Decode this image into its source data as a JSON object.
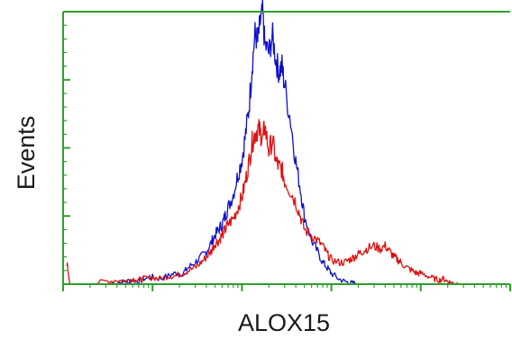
{
  "chart_data": {
    "type": "line",
    "title": "",
    "xlabel": "ALOX15",
    "ylabel": "Events",
    "xscale": "log",
    "grid": false,
    "legend": "none",
    "xlim": [
      1,
      100000
    ],
    "ylim": [
      0,
      100
    ],
    "frame_color": "#2e9e2e",
    "series": [
      {
        "color": "#1010cc",
        "x": [
          3,
          4,
          5,
          6,
          7,
          8,
          10,
          12,
          15,
          18,
          22,
          25,
          30,
          35,
          40,
          45,
          50,
          55,
          60,
          65,
          70,
          80,
          90,
          100,
          110,
          120,
          130,
          140,
          150,
          160,
          170,
          180,
          200,
          220,
          240,
          260,
          280,
          300,
          350,
          400,
          450,
          500,
          600,
          700,
          800,
          900,
          1000,
          1200,
          1400,
          1600,
          1800,
          2000,
          2200,
          2500,
          3000
        ],
        "y": [
          0,
          0.5,
          1,
          1.5,
          1,
          2,
          2.5,
          2,
          3,
          4,
          4,
          6,
          8,
          10,
          12,
          15,
          18,
          20,
          22,
          25,
          28,
          33,
          40,
          46,
          55,
          65,
          80,
          92,
          89,
          96,
          100,
          88,
          85,
          91,
          82,
          78,
          80,
          73,
          60,
          45,
          35,
          25,
          16,
          12,
          8,
          6,
          4,
          2,
          1,
          0.5,
          0.3,
          0,
          0,
          0,
          0
        ]
      },
      {
        "color": "#dd1111",
        "x": [
          1.1,
          1.2,
          1.4,
          2,
          3,
          4,
          5,
          6,
          7,
          8,
          10,
          12,
          15,
          18,
          22,
          25,
          30,
          35,
          40,
          45,
          50,
          55,
          60,
          65,
          70,
          80,
          90,
          100,
          110,
          120,
          130,
          140,
          150,
          160,
          170,
          180,
          200,
          220,
          240,
          260,
          280,
          300,
          350,
          400,
          450,
          500,
          600,
          700,
          800,
          900,
          1000,
          1200,
          1400,
          1600,
          1800,
          2000,
          2200,
          2500,
          3000,
          3500,
          4000,
          4500,
          5000,
          5500,
          6000,
          7000,
          8000,
          9000,
          10000,
          12000,
          14000,
          16000,
          18000,
          20000,
          22000,
          25000,
          28000,
          30000
        ],
        "y": [
          8,
          0,
          0,
          0,
          1,
          1.5,
          1,
          2,
          1.5,
          2,
          2.5,
          2,
          3,
          3,
          4,
          5,
          6,
          8,
          10,
          12,
          15,
          16,
          18,
          20,
          22,
          24,
          28,
          32,
          38,
          45,
          52,
          55,
          57,
          56,
          53,
          58,
          49,
          53,
          45,
          43,
          42,
          38,
          34,
          30,
          25,
          20,
          18,
          16,
          14,
          11,
          9,
          8,
          8,
          9,
          10,
          11,
          12,
          13,
          14,
          13,
          14,
          12,
          10,
          9,
          8,
          6,
          5,
          4,
          4,
          3,
          2,
          1.5,
          2,
          1,
          0.5,
          0.3,
          0,
          0
        ]
      }
    ]
  }
}
